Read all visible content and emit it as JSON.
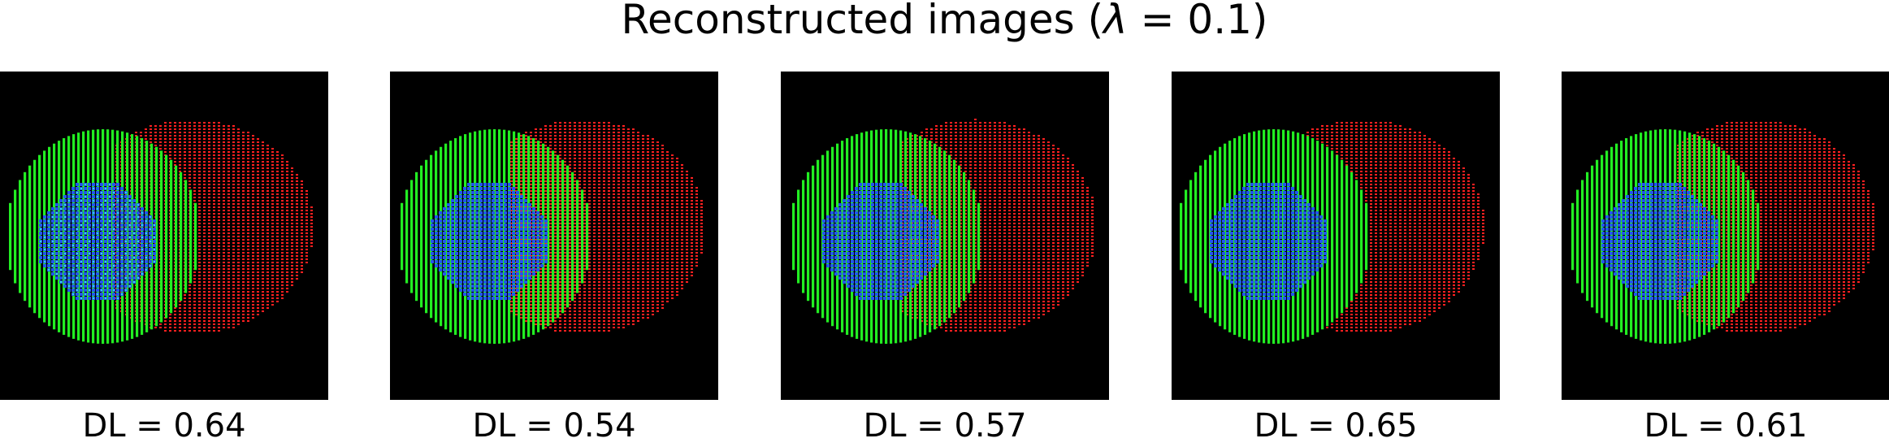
{
  "title": {
    "prefix": "Reconstructed images (",
    "symbol": "λ",
    "suffix": " =  0.1)"
  },
  "colors": {
    "background": "#000000",
    "red": "#ff2020",
    "green": "#22ee22",
    "blue": "#2255ee",
    "cyan": "#33dddd"
  },
  "panels": [
    {
      "caption": "DL = 0.64"
    },
    {
      "caption": "DL = 0.54"
    },
    {
      "caption": "DL = 0.57"
    },
    {
      "caption": "DL = 0.65"
    },
    {
      "caption": "DL = 0.61"
    }
  ]
}
